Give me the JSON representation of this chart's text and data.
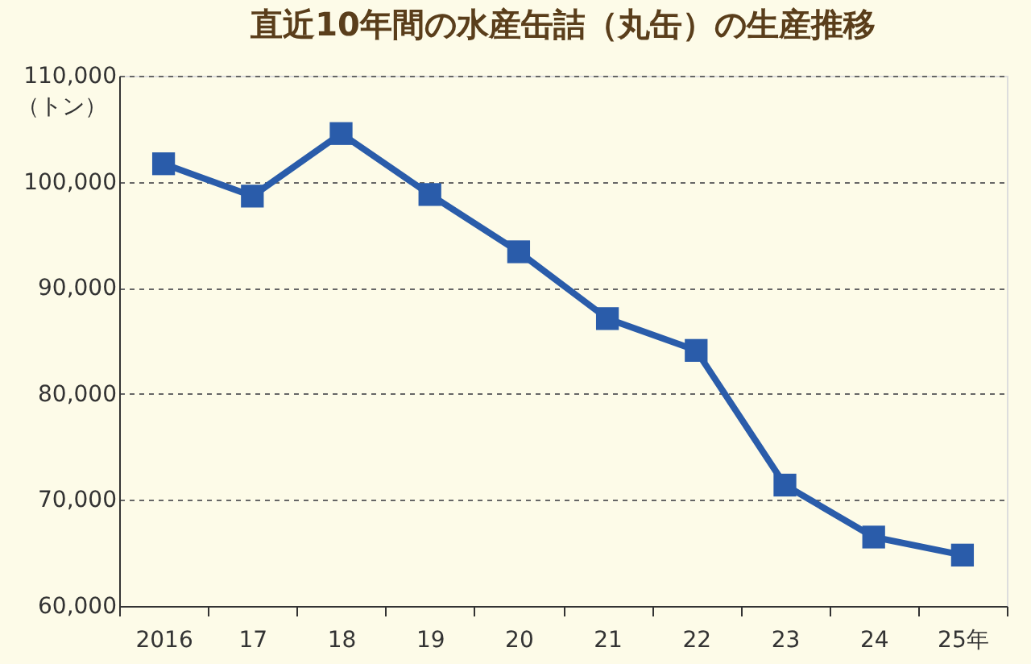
{
  "chart_data": {
    "type": "line",
    "title": "直近10年間の水産缶詰（丸缶）の生産推移",
    "ylabel": "（トン）",
    "categories": [
      "2016",
      "17",
      "18",
      "19",
      "20",
      "21",
      "22",
      "23",
      "24",
      "25年"
    ],
    "series": [
      {
        "color": "#2a5caa",
        "values": [
          101700,
          98650,
          104550,
          98800,
          93400,
          87100,
          84100,
          71400,
          66500,
          64800
        ]
      }
    ],
    "ylim": [
      60000,
      110000
    ],
    "yticks": [
      {
        "value": 60000,
        "label": "60,000"
      },
      {
        "value": 70000,
        "label": "70,000"
      },
      {
        "value": 80000,
        "label": "80,000"
      },
      {
        "value": 90000,
        "label": "90,000"
      },
      {
        "value": 100000,
        "label": "100,000"
      },
      {
        "value": 110000,
        "label": "110,000"
      }
    ],
    "grid": "y",
    "marker": "square",
    "line_style": "solid",
    "legend": false
  }
}
